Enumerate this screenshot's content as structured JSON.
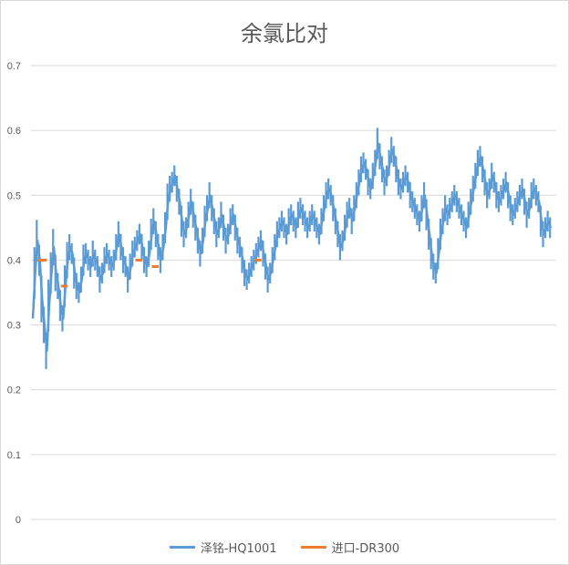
{
  "chart_data": {
    "type": "line",
    "title": "余氯比对",
    "xlabel": "",
    "ylabel": "",
    "ylim": [
      0,
      0.7
    ],
    "yticks": [
      0,
      0.1,
      0.2,
      0.3,
      0.4,
      0.5,
      0.6,
      0.7
    ],
    "grid": true,
    "legend_position": "bottom",
    "series": [
      {
        "name": "泽铭-HQ1001",
        "color": "#5B9BD5",
        "values": [
          0.31,
          0.38,
          0.43,
          0.4,
          0.34,
          0.3,
          0.26,
          0.33,
          0.38,
          0.42,
          0.38,
          0.36,
          0.33,
          0.31,
          0.36,
          0.4,
          0.42,
          0.41,
          0.38,
          0.36,
          0.35,
          0.37,
          0.4,
          0.41,
          0.4,
          0.39,
          0.41,
          0.4,
          0.39,
          0.37,
          0.38,
          0.4,
          0.41,
          0.4,
          0.39,
          0.4,
          0.42,
          0.44,
          0.42,
          0.4,
          0.39,
          0.37,
          0.39,
          0.41,
          0.42,
          0.43,
          0.44,
          0.42,
          0.4,
          0.39,
          0.41,
          0.44,
          0.46,
          0.44,
          0.42,
          0.4,
          0.42,
          0.45,
          0.49,
          0.51,
          0.52,
          0.53,
          0.51,
          0.49,
          0.46,
          0.44,
          0.45,
          0.47,
          0.49,
          0.47,
          0.45,
          0.43,
          0.41,
          0.43,
          0.46,
          0.48,
          0.5,
          0.48,
          0.46,
          0.44,
          0.45,
          0.47,
          0.45,
          0.43,
          0.44,
          0.46,
          0.47,
          0.45,
          0.43,
          0.42,
          0.4,
          0.38,
          0.37,
          0.38,
          0.39,
          0.4,
          0.41,
          0.42,
          0.43,
          0.41,
          0.39,
          0.37,
          0.38,
          0.4,
          0.42,
          0.44,
          0.45,
          0.46,
          0.45,
          0.44,
          0.46,
          0.47,
          0.46,
          0.45,
          0.47,
          0.48,
          0.47,
          0.46,
          0.45,
          0.46,
          0.47,
          0.46,
          0.45,
          0.44,
          0.46,
          0.48,
          0.5,
          0.51,
          0.5,
          0.48,
          0.46,
          0.44,
          0.42,
          0.43,
          0.45,
          0.47,
          0.48,
          0.46,
          0.48,
          0.5,
          0.52,
          0.54,
          0.55,
          0.54,
          0.52,
          0.51,
          0.53,
          0.55,
          0.58,
          0.56,
          0.54,
          0.52,
          0.53,
          0.55,
          0.57,
          0.56,
          0.54,
          0.52,
          0.51,
          0.52,
          0.53,
          0.52,
          0.5,
          0.49,
          0.48,
          0.47,
          0.46,
          0.48,
          0.5,
          0.47,
          0.44,
          0.41,
          0.39,
          0.38,
          0.41,
          0.44,
          0.46,
          0.48,
          0.47,
          0.48,
          0.49,
          0.5,
          0.49,
          0.48,
          0.47,
          0.46,
          0.45,
          0.47,
          0.49,
          0.51,
          0.53,
          0.55,
          0.56,
          0.54,
          0.52,
          0.5,
          0.51,
          0.53,
          0.52,
          0.5,
          0.49,
          0.5,
          0.51,
          0.52,
          0.5,
          0.48,
          0.47,
          0.48,
          0.49,
          0.5,
          0.51,
          0.49,
          0.47,
          0.48,
          0.5,
          0.51,
          0.5,
          0.49,
          0.46,
          0.44,
          0.45,
          0.46,
          0.45
        ]
      },
      {
        "name": "进口-DR300",
        "color": "#ED7D31",
        "points": [
          [
            3,
            0.4
          ],
          [
            4,
            0.4
          ],
          [
            5,
            0.4
          ],
          [
            13,
            0.36
          ],
          [
            14,
            0.36
          ],
          [
            45,
            0.4
          ],
          [
            46,
            0.4
          ],
          [
            52,
            0.39
          ],
          [
            53,
            0.39
          ],
          [
            96,
            0.4
          ],
          [
            97,
            0.4
          ]
        ]
      }
    ]
  }
}
